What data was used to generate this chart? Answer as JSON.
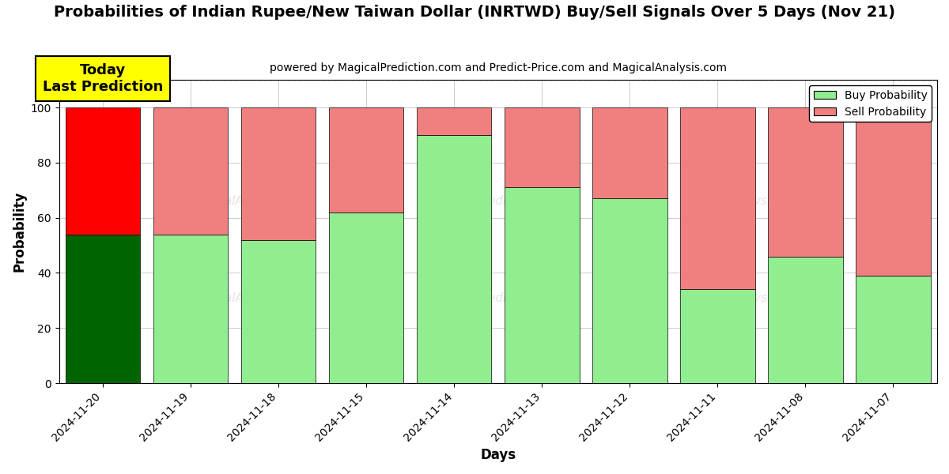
{
  "title": "Probabilities of Indian Rupee/New Taiwan Dollar (INRTWD) Buy/Sell Signals Over 5 Days (Nov 21)",
  "subtitle": "powered by MagicalPrediction.com and Predict-Price.com and MagicalAnalysis.com",
  "xlabel": "Days",
  "ylabel": "Probability",
  "categories": [
    "2024-11-20",
    "2024-11-19",
    "2024-11-18",
    "2024-11-15",
    "2024-11-14",
    "2024-11-13",
    "2024-11-12",
    "2024-11-11",
    "2024-11-08",
    "2024-11-07"
  ],
  "buy_values": [
    54,
    54,
    52,
    62,
    90,
    71,
    67,
    34,
    46,
    39
  ],
  "sell_values": [
    46,
    46,
    48,
    38,
    10,
    29,
    33,
    66,
    54,
    61
  ],
  "today_buy_color": "#006400",
  "today_sell_color": "#ff0000",
  "buy_color": "#90EE90",
  "sell_color": "#F08080",
  "today_index": 0,
  "today_label": "Today\nLast Prediction",
  "ylim": [
    0,
    110
  ],
  "yticks": [
    0,
    20,
    40,
    60,
    80,
    100
  ],
  "dashed_line_y": 110,
  "background_color": "#ffffff",
  "grid_color": "#cccccc",
  "legend_buy_label": "Buy Probability",
  "legend_sell_label": "Sell Probability",
  "title_fontsize": 14,
  "subtitle_fontsize": 10,
  "label_fontsize": 12,
  "bar_width": 0.85
}
